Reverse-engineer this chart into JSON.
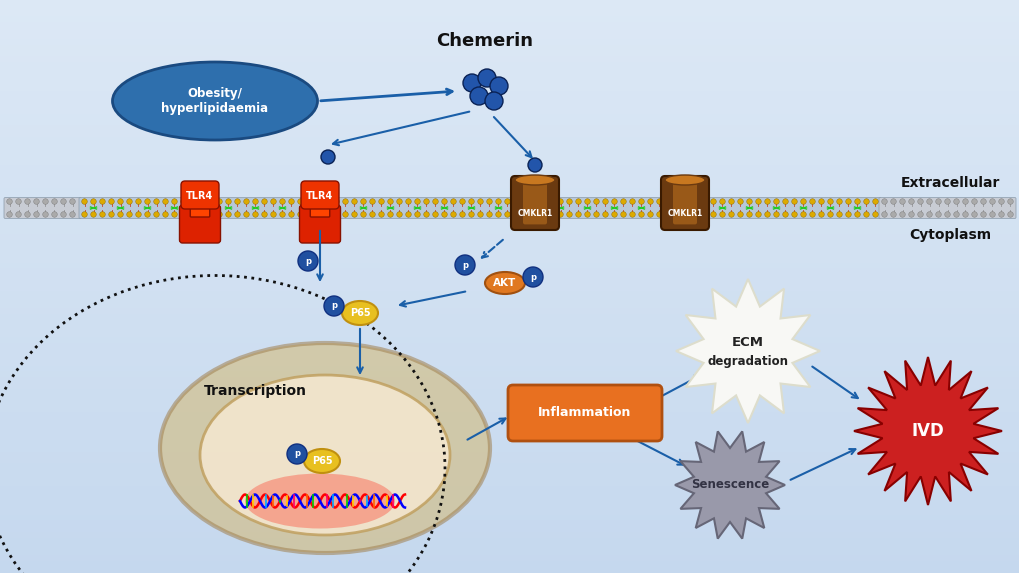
{
  "bg_color_top": "#dce8f5",
  "bg_color_bottom": "#c5d8ee",
  "title": "Chemerin",
  "extracellular_label": "Extracellular",
  "cytoplasm_label": "Cytoplasm",
  "obesity_text": "Obesity/\nhyperlipidaemia",
  "obesity_color": "#2e6fad",
  "chemerin_color": "#1a5fa8",
  "tlr4_color_top": "#cc2200",
  "tlr4_color_bottom": "#ff4400",
  "cmklr1_color": "#5a3010",
  "cmklr1_highlight": "#c87820",
  "akt_color": "#e07820",
  "p65_color": "#e8c020",
  "p_circle_color": "#2050a0",
  "inflammation_color": "#e87020",
  "ecm_color": "#ffffff",
  "senescence_color": "#888888",
  "ivd_color": "#cc2020",
  "arrow_color": "#1a5fa8",
  "green_color": "#20cc20"
}
